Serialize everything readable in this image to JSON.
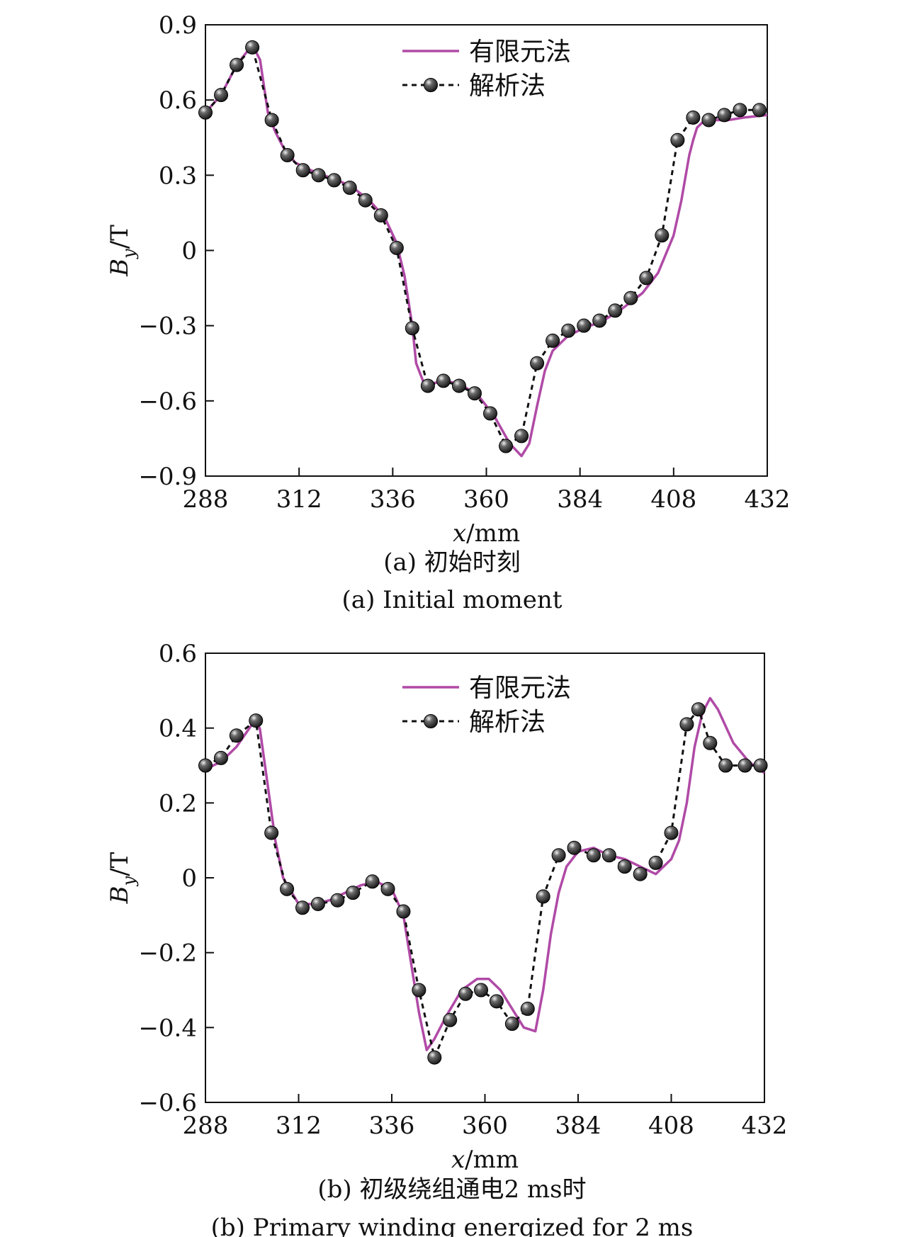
{
  "colors": {
    "fem": "#b04aa6",
    "analytic": "#111111",
    "marker": "#1a1a1a"
  },
  "chart_data": [
    {
      "type": "line",
      "xlabel": "x/mm",
      "ylabel": "By/T",
      "xlim": [
        288,
        432
      ],
      "ylim": [
        -0.9,
        0.9
      ],
      "xticks": [
        "288",
        "312",
        "336",
        "360",
        "384",
        "408",
        "432"
      ],
      "yticks": [
        "−0.9",
        "−0.6",
        "−0.3",
        "0",
        "0.3",
        "0.6",
        "0.9"
      ],
      "legend": [
        "有限元法",
        "解析法"
      ],
      "legend_position": "top-center",
      "caption_cn": "(a) 初始时刻",
      "caption_en": "(a) Initial moment",
      "series": [
        {
          "name": "有限元法",
          "style": "solid",
          "x": [
            288,
            292,
            296,
            300,
            302,
            304,
            306,
            308,
            311,
            315,
            320,
            325,
            330,
            334,
            337,
            339,
            341,
            342,
            344,
            346,
            350,
            354,
            358,
            362,
            366,
            369,
            371,
            373,
            375,
            377,
            379,
            381,
            385,
            390,
            395,
            400,
            404,
            408,
            410,
            412,
            413,
            414,
            416,
            418,
            422,
            426,
            432
          ],
          "y": [
            0.55,
            0.62,
            0.74,
            0.82,
            0.76,
            0.55,
            0.47,
            0.41,
            0.35,
            0.32,
            0.29,
            0.26,
            0.2,
            0.13,
            0.03,
            -0.1,
            -0.3,
            -0.45,
            -0.53,
            -0.53,
            -0.52,
            -0.54,
            -0.58,
            -0.66,
            -0.77,
            -0.82,
            -0.77,
            -0.62,
            -0.48,
            -0.4,
            -0.37,
            -0.34,
            -0.31,
            -0.28,
            -0.23,
            -0.17,
            -0.09,
            0.06,
            0.2,
            0.38,
            0.44,
            0.49,
            0.52,
            0.52,
            0.52,
            0.53,
            0.54
          ]
        },
        {
          "name": "解析法",
          "style": "dashed-markers",
          "x": [
            288,
            292,
            296,
            300,
            305,
            309,
            313,
            317,
            321,
            325,
            329,
            333,
            337,
            341,
            345,
            349,
            353,
            357,
            361,
            365,
            369,
            373,
            377,
            381,
            385,
            389,
            393,
            397,
            401,
            405,
            409,
            413,
            417,
            421,
            425,
            430
          ],
          "y": [
            0.55,
            0.62,
            0.74,
            0.81,
            0.52,
            0.38,
            0.32,
            0.3,
            0.28,
            0.25,
            0.2,
            0.14,
            0.01,
            -0.31,
            -0.54,
            -0.52,
            -0.54,
            -0.57,
            -0.65,
            -0.78,
            -0.74,
            -0.45,
            -0.36,
            -0.32,
            -0.3,
            -0.28,
            -0.24,
            -0.19,
            -0.11,
            0.06,
            0.44,
            0.53,
            0.52,
            0.54,
            0.56,
            0.56
          ]
        }
      ]
    },
    {
      "type": "line",
      "xlabel": "x/mm",
      "ylabel": "By/T",
      "xlim": [
        288,
        432
      ],
      "ylim": [
        -0.6,
        0.6
      ],
      "xticks": [
        "288",
        "312",
        "336",
        "360",
        "384",
        "408",
        "432"
      ],
      "yticks": [
        "−0.6",
        "−0.4",
        "−0.2",
        "0",
        "0.2",
        "0.4",
        "0.6"
      ],
      "legend": [
        "有限元法",
        "解析法"
      ],
      "legend_position": "top-center",
      "caption_cn": "(b) 初级绕组通电2 ms时",
      "caption_en": "(b) Primary winding energized for 2 ms",
      "series": [
        {
          "name": "有限元法",
          "style": "solid",
          "x": [
            288,
            292,
            296,
            300,
            302,
            304,
            306,
            308,
            312,
            316,
            320,
            324,
            328,
            332,
            336,
            339,
            341,
            343,
            345,
            347,
            350,
            354,
            358,
            361,
            364,
            367,
            370,
            373,
            375,
            377,
            379,
            381,
            384,
            388,
            392,
            396,
            400,
            404,
            408,
            410,
            412,
            414,
            416,
            418,
            420,
            424,
            428,
            432
          ],
          "y": [
            0.29,
            0.31,
            0.35,
            0.41,
            0.4,
            0.25,
            0.1,
            0.0,
            -0.07,
            -0.07,
            -0.06,
            -0.04,
            -0.02,
            -0.01,
            -0.03,
            -0.1,
            -0.23,
            -0.36,
            -0.46,
            -0.43,
            -0.37,
            -0.3,
            -0.27,
            -0.27,
            -0.3,
            -0.35,
            -0.4,
            -0.41,
            -0.3,
            -0.15,
            -0.04,
            0.03,
            0.07,
            0.08,
            0.06,
            0.05,
            0.03,
            0.01,
            0.05,
            0.1,
            0.2,
            0.35,
            0.44,
            0.48,
            0.45,
            0.36,
            0.31,
            0.28
          ]
        },
        {
          "name": "解析法",
          "style": "dashed-markers",
          "x": [
            288,
            292,
            296,
            301,
            305,
            309,
            313,
            317,
            322,
            326,
            331,
            335,
            339,
            343,
            347,
            351,
            355,
            359,
            363,
            367,
            371,
            375,
            379,
            383,
            388,
            392,
            396,
            400,
            404,
            408,
            412,
            415,
            418,
            422,
            427,
            431
          ],
          "y": [
            0.3,
            0.32,
            0.38,
            0.42,
            0.12,
            -0.03,
            -0.08,
            -0.07,
            -0.06,
            -0.04,
            -0.01,
            -0.03,
            -0.09,
            -0.3,
            -0.48,
            -0.38,
            -0.31,
            -0.3,
            -0.33,
            -0.39,
            -0.35,
            -0.05,
            0.06,
            0.08,
            0.06,
            0.06,
            0.03,
            0.01,
            0.04,
            0.12,
            0.41,
            0.45,
            0.36,
            0.3,
            0.3,
            0.3
          ]
        }
      ]
    }
  ]
}
